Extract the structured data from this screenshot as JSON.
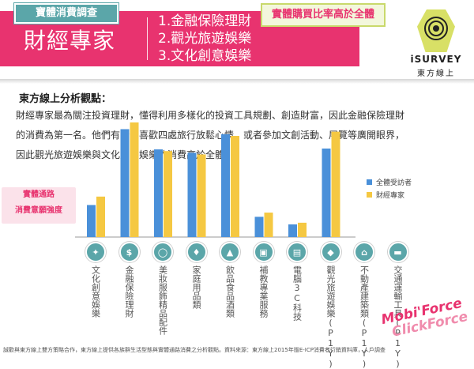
{
  "header": {
    "tag": "寶體消費調查",
    "title": "財經專家",
    "highlight": "實體購買比率高於全體",
    "list": [
      "1.金融保險理財",
      "2.觀光旅遊娛樂",
      "3.文化創意娛樂"
    ]
  },
  "logo": {
    "brand": "iSURVEY",
    "cn": "東方線上"
  },
  "analysis": {
    "title": "東方線上分析觀點：",
    "lines": [
      "財經專家最為關注投資理財，懂得利用多樣化的投資工具規劃、創造財富，因此金融保險理財",
      "的消費為第一名。他們有時也喜歡四處旅行放鬆心情，或者參加文創活動、展覽等廣開眼界，",
      "因此觀光旅遊娛樂與文化創意娛樂的消費高於全體。"
    ]
  },
  "sidebox": {
    "line1": "實體通路",
    "line2": "消費意願強度"
  },
  "colors": {
    "accent": "#e8336f",
    "teal": "#5ba6a9",
    "series_all": "#4a90d9",
    "series_expert": "#f5c842"
  },
  "chart_data": {
    "type": "bar",
    "categories": [
      "文化創意娛樂",
      "金融保險理財",
      "美妝服飾精品配件",
      "家庭用品類",
      "飲品食品酒類",
      "補教專業服務",
      "電腦3C科技",
      "觀光旅遊娛樂(P1Y)",
      "不動產建築類(P1Y)",
      "交通運輸工具(P1Y)"
    ],
    "series": [
      {
        "name": "全體受訪者",
        "values": [
          0.38,
          1.28,
          1.04,
          1.0,
          1.22,
          0.24,
          0.15,
          1.05,
          0,
          0
        ]
      },
      {
        "name": "財經專家",
        "values": [
          0.48,
          1.36,
          1.02,
          0.98,
          1.2,
          0.29,
          0.17,
          1.25,
          0,
          0
        ]
      }
    ],
    "ylim": [
      0,
      1.5
    ],
    "legend_position": "right",
    "grid": false
  },
  "icons": [
    "lightbulb-icon",
    "coin-bag-icon",
    "hanger-icon",
    "home-goods-icon",
    "bottle-icon",
    "book-icon",
    "computer-icon",
    "map-icon",
    "building-icon",
    "vehicle-icon"
  ],
  "footer": "誠歡與東方線上雙方策略合作，東方線上提供各族群生活型態與實體通路消費之分析觀點。資料來源：東方線上2015年版E-ICP消費者行銷資料庫，人戶調查",
  "watermark": {
    "line1": "Mobi'Force",
    "line2": "ClickForce"
  }
}
